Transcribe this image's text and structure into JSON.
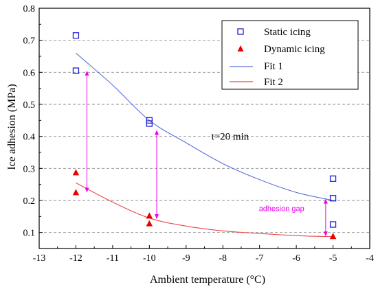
{
  "chart_data": {
    "type": "scatter",
    "xlabel": "Ambient temperature (°C)",
    "ylabel": "Ice adhesion (MPa)",
    "xlim": [
      -13,
      -4
    ],
    "ylim": [
      0.05,
      0.8
    ],
    "x_ticks": [
      -13,
      -12,
      -11,
      -10,
      -9,
      -8,
      -7,
      -6,
      -5,
      -4
    ],
    "y_ticks": [
      0.1,
      0.2,
      0.3,
      0.4,
      0.5,
      0.6,
      0.7,
      0.8
    ],
    "grid": "horizontal-dashed",
    "legend_position": "top-right",
    "colors": {
      "static": "#1f1fd0",
      "dynamic": "#ee0000",
      "fit1": "#5a6fd6",
      "fit2": "#ee4444",
      "arrow": "#ee00ee",
      "grid": "#8c8c8c"
    },
    "series": [
      {
        "name": "Static icing",
        "kind": "points",
        "marker": "open-square",
        "points": [
          [
            -12,
            0.715
          ],
          [
            -12,
            0.605
          ],
          [
            -10,
            0.45
          ],
          [
            -10,
            0.44
          ],
          [
            -5,
            0.268
          ],
          [
            -5,
            0.207
          ],
          [
            -5,
            0.125
          ]
        ]
      },
      {
        "name": "Dynamic icing",
        "kind": "points",
        "marker": "filled-triangle",
        "points": [
          [
            -12,
            0.287
          ],
          [
            -12,
            0.225
          ],
          [
            -10,
            0.152
          ],
          [
            -10,
            0.128
          ],
          [
            -5,
            0.088
          ]
        ]
      },
      {
        "name": "Fit 1",
        "kind": "line",
        "points": [
          [
            -12,
            0.66
          ],
          [
            -11,
            0.56
          ],
          [
            -10,
            0.45
          ],
          [
            -9,
            0.38
          ],
          [
            -8,
            0.315
          ],
          [
            -7,
            0.265
          ],
          [
            -6,
            0.225
          ],
          [
            -5,
            0.2
          ]
        ]
      },
      {
        "name": "Fit 2",
        "kind": "line",
        "points": [
          [
            -12,
            0.255
          ],
          [
            -11,
            0.195
          ],
          [
            -10,
            0.145
          ],
          [
            -9,
            0.12
          ],
          [
            -8,
            0.105
          ],
          [
            -7,
            0.097
          ],
          [
            -6,
            0.09
          ],
          [
            -5,
            0.087
          ]
        ]
      }
    ],
    "arrows": [
      {
        "x": -11.7,
        "y1": 0.605,
        "y2": 0.225
      },
      {
        "x": -9.8,
        "y1": 0.42,
        "y2": 0.142
      },
      {
        "x": -5.2,
        "y1": 0.205,
        "y2": 0.088
      }
    ],
    "annotations": [
      {
        "text": "t=20 min",
        "x": -7.8,
        "y": 0.4
      },
      {
        "text": "adhesion gap",
        "x": -6.4,
        "y": 0.175
      }
    ]
  }
}
